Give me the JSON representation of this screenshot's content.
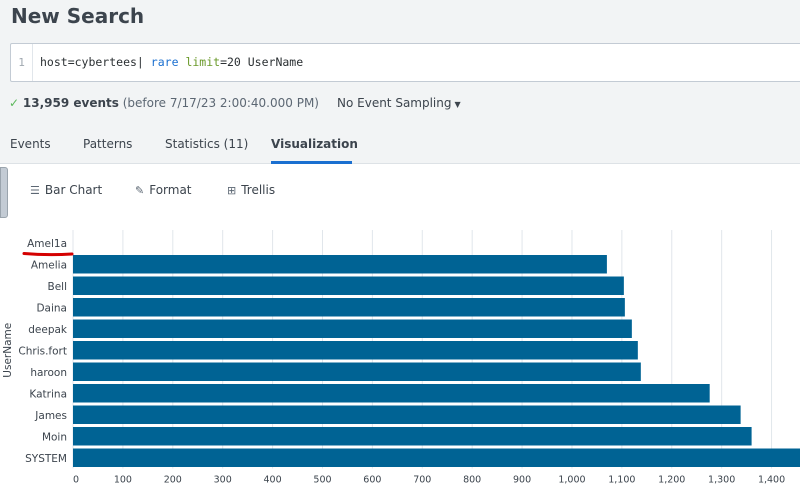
{
  "header": {
    "title": "New Search"
  },
  "search": {
    "line_number": "1",
    "query_base": "host=cybertees|",
    "query_cmd": "rare",
    "query_arg": "limit",
    "query_rest": "=20 UserName"
  },
  "status": {
    "check": "✓",
    "events": "13,959 events",
    "before": "(before 7/17/23 2:00:40.000 PM)",
    "sampling": "No Event Sampling"
  },
  "tabs": [
    {
      "label": "Events"
    },
    {
      "label": "Patterns"
    },
    {
      "label": "Statistics (11)"
    },
    {
      "label": "Visualization"
    }
  ],
  "toolbar": {
    "bar_chart": "Bar Chart",
    "format": "Format",
    "trellis": "Trellis"
  },
  "colors": {
    "bar": "#006394",
    "grid": "#e1e6eb",
    "annotation": "#d40000"
  },
  "chart_data": {
    "type": "bar",
    "orientation": "horizontal",
    "ylabel": "UserName",
    "categories": [
      "Amel1a",
      "Amelia",
      "Bell",
      "Daina",
      "deepak",
      "Chris.fort",
      "haroon",
      "Katrina",
      "James",
      "Moin",
      "SYSTEM"
    ],
    "values": [
      0,
      1070,
      1104,
      1106,
      1120,
      1132,
      1138,
      1276,
      1338,
      1360,
      1457
    ],
    "xticks": [
      0,
      100,
      200,
      300,
      400,
      500,
      600,
      700,
      800,
      900,
      1000,
      1100,
      1200,
      1300,
      1400
    ],
    "xtick_labels": [
      "0",
      "100",
      "200",
      "300",
      "400",
      "500",
      "600",
      "700",
      "800",
      "900",
      "1,000",
      "1,100",
      "1,200",
      "1,300",
      "1,400"
    ],
    "xlim": [
      0,
      1457
    ],
    "grid": true,
    "annotation": "red underline beneath first category label"
  }
}
